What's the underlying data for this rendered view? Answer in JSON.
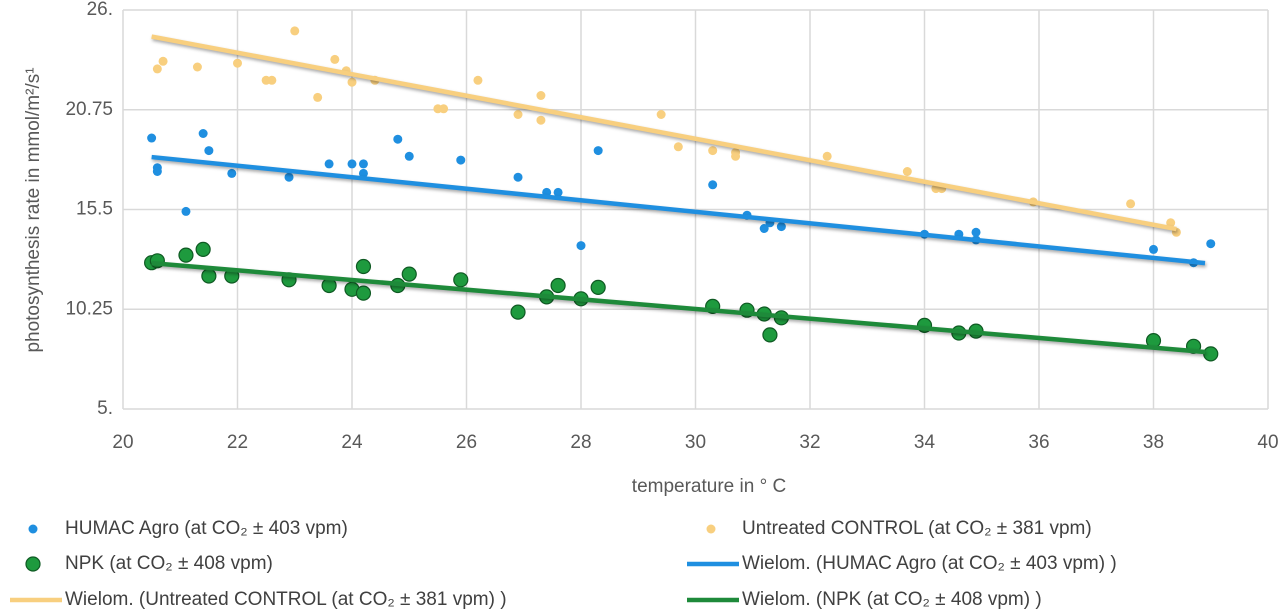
{
  "chart_data": {
    "type": "scatter",
    "x_label": "temperature in ° C",
    "y_label": "photosynthesis rate in mmol/m²/s¹",
    "xlim": [
      20,
      40
    ],
    "xticks": [
      20,
      22,
      24,
      26,
      28,
      30,
      32,
      34,
      36,
      38,
      40
    ],
    "ylim": [
      5,
      26
    ],
    "yticks": [
      {
        "value": 5,
        "label": "5."
      },
      10.25,
      15.5,
      20.75,
      {
        "value": 26,
        "label": "26."
      }
    ],
    "grid": true,
    "legend": "bottom",
    "series": [
      {
        "name": "HUMAC Agro (at CO₂ ± 403 vpm)",
        "type": "scatter",
        "color": "#1f8fe0",
        "x": [
          20.5,
          20.6,
          20.6,
          21.1,
          21.4,
          21.5,
          21.9,
          22.9,
          23.6,
          24.0,
          24.2,
          24.2,
          24.8,
          25.0,
          25.9,
          26.9,
          27.4,
          27.6,
          28.0,
          28.3,
          30.3,
          30.9,
          31.2,
          31.3,
          31.5,
          34.0,
          34.6,
          34.9,
          34.9,
          38.0,
          38.7,
          39.0
        ],
        "values": [
          19.26,
          17.7,
          17.5,
          15.4,
          19.5,
          18.6,
          17.4,
          17.2,
          17.9,
          17.9,
          17.9,
          17.4,
          19.2,
          18.3,
          18.1,
          17.2,
          16.4,
          16.4,
          13.6,
          18.6,
          16.8,
          15.2,
          14.5,
          14.8,
          14.6,
          14.2,
          14.2,
          14.3,
          13.9,
          13.4,
          12.7,
          13.7
        ]
      },
      {
        "name": "Untreated CONTROL (at CO₂  ± 381 vpm)",
        "type": "scatter",
        "color": "#f8cf7f",
        "x": [
          20.6,
          20.7,
          21.3,
          22.0,
          22.5,
          22.6,
          23.0,
          23.4,
          23.7,
          23.9,
          24.0,
          24.4,
          25.5,
          25.6,
          26.2,
          26.9,
          27.3,
          27.3,
          29.4,
          29.7,
          30.3,
          30.7,
          30.7,
          32.3,
          33.7,
          34.2,
          34.3,
          35.9,
          37.6,
          38.3,
          38.4
        ],
        "values": [
          22.9,
          23.3,
          23.0,
          23.2,
          22.3,
          22.3,
          24.9,
          21.4,
          23.4,
          22.8,
          22.2,
          22.3,
          20.8,
          20.8,
          22.3,
          20.5,
          21.5,
          20.2,
          20.5,
          18.8,
          18.6,
          18.5,
          18.3,
          18.3,
          17.5,
          16.6,
          16.6,
          15.9,
          15.8,
          14.8,
          14.3
        ]
      },
      {
        "name": "NPK (at CO₂ ± 408 vpm)",
        "type": "scatter",
        "color": "#1e9a3e",
        "x": [
          20.5,
          20.6,
          21.1,
          21.4,
          21.5,
          21.9,
          22.9,
          23.6,
          24.0,
          24.2,
          24.2,
          24.8,
          25.0,
          25.9,
          26.9,
          27.4,
          27.6,
          28.0,
          28.3,
          30.3,
          30.9,
          31.2,
          31.3,
          31.5,
          34.0,
          34.6,
          34.9,
          38.0,
          38.7,
          39.0
        ],
        "values": [
          12.7,
          12.8,
          13.1,
          13.4,
          12.0,
          12.0,
          11.8,
          11.5,
          11.3,
          12.5,
          11.1,
          11.5,
          12.1,
          11.8,
          10.1,
          10.9,
          11.5,
          10.8,
          11.4,
          10.4,
          10.2,
          10.0,
          8.9,
          9.8,
          9.4,
          9.0,
          9.1,
          8.6,
          8.3,
          7.9
        ]
      },
      {
        "name": "Wielom. (HUMAC Agro (at CO₂ ± 403 vpm) )",
        "type": "line",
        "color": "#1f8fe0",
        "x": [
          20.5,
          38.9
        ],
        "values": [
          18.26,
          12.68
        ]
      },
      {
        "name": "Wielom. (Untreated CONTROL (at CO₂  ± 381 vpm) )",
        "type": "line",
        "color": "#f8cf7f",
        "x": [
          20.5,
          38.4
        ],
        "values": [
          24.6,
          14.47
        ]
      },
      {
        "name": "Wielom. (NPK (at CO₂ ± 408 vpm) )",
        "type": "line",
        "color": "#1e8a3a",
        "x": [
          20.5,
          38.9
        ],
        "values": [
          12.68,
          8.0
        ]
      }
    ]
  }
}
